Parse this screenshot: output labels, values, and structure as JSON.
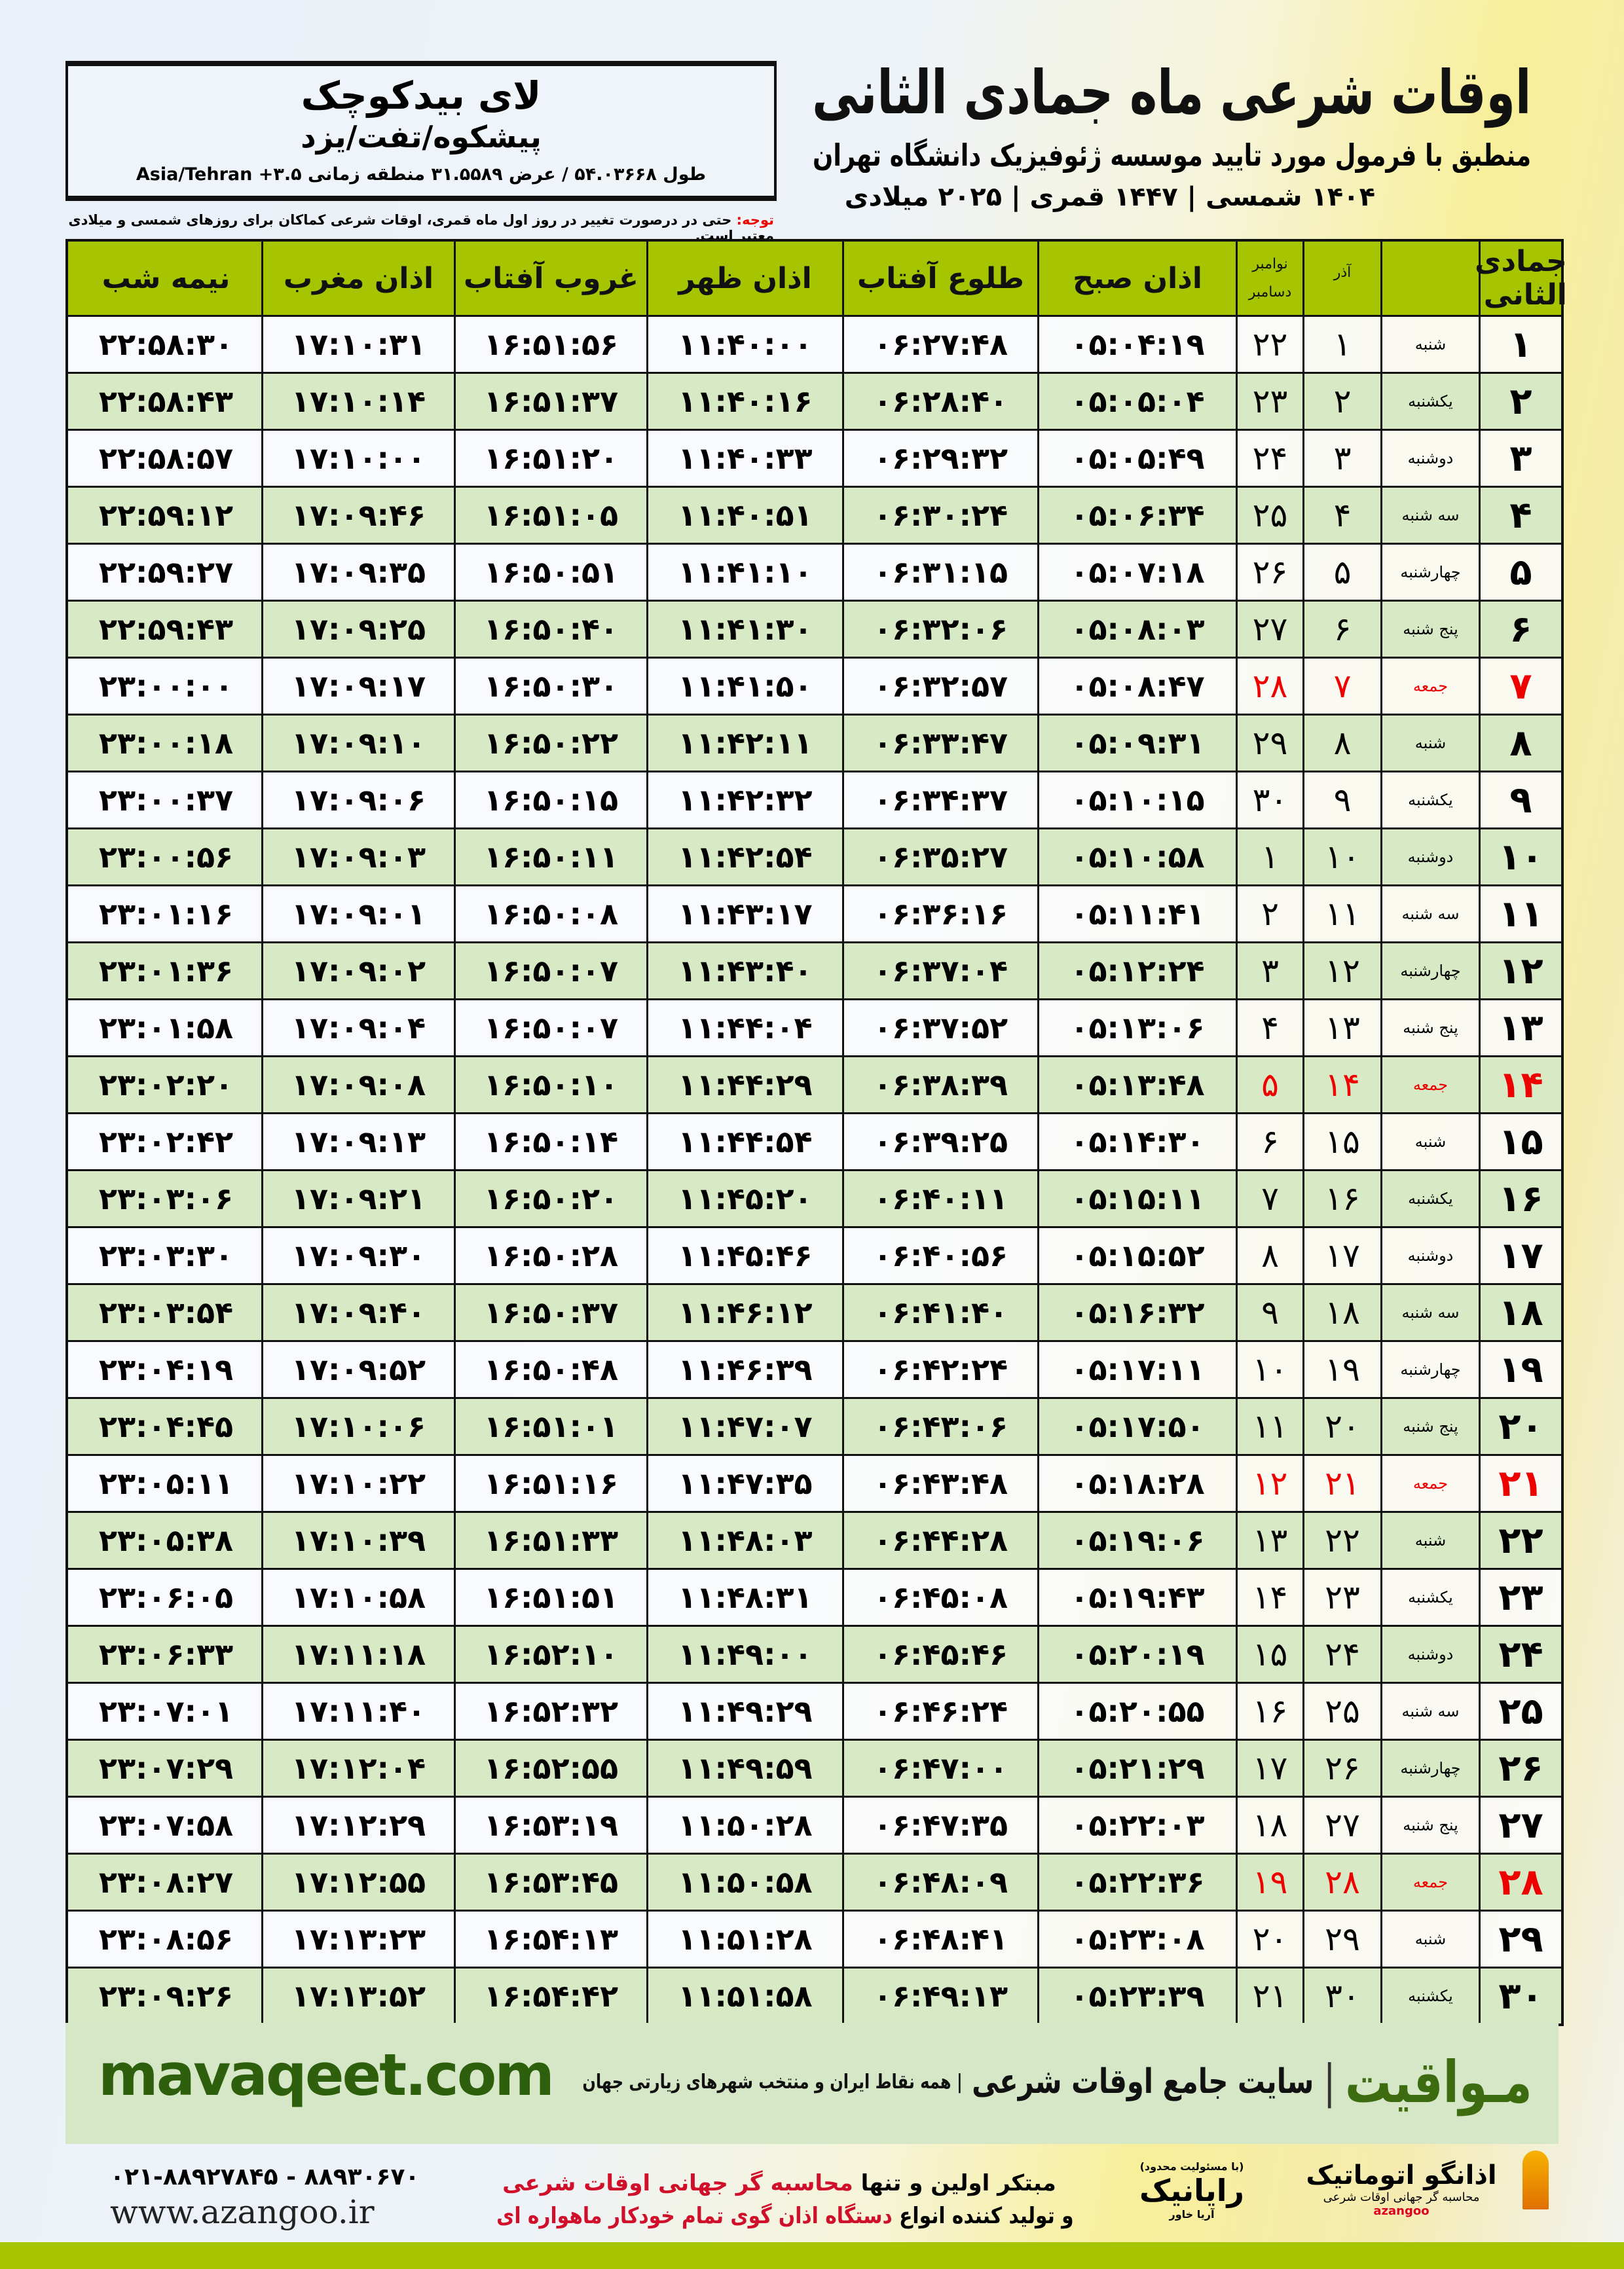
{
  "header": {
    "title": "اوقات شرعی ماه جمادی الثانی",
    "subtitle": "منطبق با فرمول مورد تایید موسسه ژئوفیزیک دانشگاه تهران",
    "dates": "۱۴۰۴ شمسی | ۱۴۴۷ قمری | ۲۰۲۵ میلادی",
    "note_label": "توجه:",
    "note": " حتی در درصورت تغییر در روز اول ماه قمری، اوقات شرعی کماکان برای روزهای شمسی و میلادی معتبر است."
  },
  "location": {
    "city": "لای بیدکوچک",
    "region": "پیشکوه/تفت/یزد",
    "coords": "طول ۵۴.۰۳۶۶۸ / عرض ۳۱.۵۵۸۹ منطقه زمانی ۳.۵+ Asia/Tehran"
  },
  "table": {
    "headers": {
      "month": "جمادی الثانی",
      "azar": "آذر",
      "nov": "نوامبر",
      "dec": "دسامبر",
      "sobh": "اذان صبح",
      "tolu": "طلوع آفتاب",
      "zohr": "اذان ظهر",
      "ghorub": "غروب آفتاب",
      "maghrib": "اذان مغرب",
      "nimeshab": "نیمه شب"
    },
    "holiday_color": "#e00000",
    "header_color": "#a6c400",
    "rows": [
      [
        "۱",
        "شنبه",
        "۱",
        "۲۲",
        "۰۵:۰۴:۱۹",
        "۰۶:۲۷:۴۸",
        "۱۱:۴۰:۰۰",
        "۱۶:۵۱:۵۶",
        "۱۷:۱۰:۳۱",
        "۲۲:۵۸:۳۰",
        false
      ],
      [
        "۲",
        "یکشنبه",
        "۲",
        "۲۳",
        "۰۵:۰۵:۰۴",
        "۰۶:۲۸:۴۰",
        "۱۱:۴۰:۱۶",
        "۱۶:۵۱:۳۷",
        "۱۷:۱۰:۱۴",
        "۲۲:۵۸:۴۳",
        false
      ],
      [
        "۳",
        "دوشنبه",
        "۳",
        "۲۴",
        "۰۵:۰۵:۴۹",
        "۰۶:۲۹:۳۲",
        "۱۱:۴۰:۳۳",
        "۱۶:۵۱:۲۰",
        "۱۷:۱۰:۰۰",
        "۲۲:۵۸:۵۷",
        false
      ],
      [
        "۴",
        "سه شنبه",
        "۴",
        "۲۵",
        "۰۵:۰۶:۳۴",
        "۰۶:۳۰:۲۴",
        "۱۱:۴۰:۵۱",
        "۱۶:۵۱:۰۵",
        "۱۷:۰۹:۴۶",
        "۲۲:۵۹:۱۲",
        false
      ],
      [
        "۵",
        "چهارشنبه",
        "۵",
        "۲۶",
        "۰۵:۰۷:۱۸",
        "۰۶:۳۱:۱۵",
        "۱۱:۴۱:۱۰",
        "۱۶:۵۰:۵۱",
        "۱۷:۰۹:۳۵",
        "۲۲:۵۹:۲۷",
        false
      ],
      [
        "۶",
        "پنج شنبه",
        "۶",
        "۲۷",
        "۰۵:۰۸:۰۳",
        "۰۶:۳۲:۰۶",
        "۱۱:۴۱:۳۰",
        "۱۶:۵۰:۴۰",
        "۱۷:۰۹:۲۵",
        "۲۲:۵۹:۴۳",
        false
      ],
      [
        "۷",
        "جمعه",
        "۷",
        "۲۸",
        "۰۵:۰۸:۴۷",
        "۰۶:۳۲:۵۷",
        "۱۱:۴۱:۵۰",
        "۱۶:۵۰:۳۰",
        "۱۷:۰۹:۱۷",
        "۲۳:۰۰:۰۰",
        true
      ],
      [
        "۸",
        "شنبه",
        "۸",
        "۲۹",
        "۰۵:۰۹:۳۱",
        "۰۶:۳۳:۴۷",
        "۱۱:۴۲:۱۱",
        "۱۶:۵۰:۲۲",
        "۱۷:۰۹:۱۰",
        "۲۳:۰۰:۱۸",
        false
      ],
      [
        "۹",
        "یکشنبه",
        "۹",
        "۳۰",
        "۰۵:۱۰:۱۵",
        "۰۶:۳۴:۳۷",
        "۱۱:۴۲:۳۲",
        "۱۶:۵۰:۱۵",
        "۱۷:۰۹:۰۶",
        "۲۳:۰۰:۳۷",
        false
      ],
      [
        "۱۰",
        "دوشنبه",
        "۱۰",
        "۱",
        "۰۵:۱۰:۵۸",
        "۰۶:۳۵:۲۷",
        "۱۱:۴۲:۵۴",
        "۱۶:۵۰:۱۱",
        "۱۷:۰۹:۰۳",
        "۲۳:۰۰:۵۶",
        false
      ],
      [
        "۱۱",
        "سه شنبه",
        "۱۱",
        "۲",
        "۰۵:۱۱:۴۱",
        "۰۶:۳۶:۱۶",
        "۱۱:۴۳:۱۷",
        "۱۶:۵۰:۰۸",
        "۱۷:۰۹:۰۱",
        "۲۳:۰۱:۱۶",
        false
      ],
      [
        "۱۲",
        "چهارشنبه",
        "۱۲",
        "۳",
        "۰۵:۱۲:۲۴",
        "۰۶:۳۷:۰۴",
        "۱۱:۴۳:۴۰",
        "۱۶:۵۰:۰۷",
        "۱۷:۰۹:۰۲",
        "۲۳:۰۱:۳۶",
        false
      ],
      [
        "۱۳",
        "پنج شنبه",
        "۱۳",
        "۴",
        "۰۵:۱۳:۰۶",
        "۰۶:۳۷:۵۲",
        "۱۱:۴۴:۰۴",
        "۱۶:۵۰:۰۷",
        "۱۷:۰۹:۰۴",
        "۲۳:۰۱:۵۸",
        false
      ],
      [
        "۱۴",
        "جمعه",
        "۱۴",
        "۵",
        "۰۵:۱۳:۴۸",
        "۰۶:۳۸:۳۹",
        "۱۱:۴۴:۲۹",
        "۱۶:۵۰:۱۰",
        "۱۷:۰۹:۰۸",
        "۲۳:۰۲:۲۰",
        true
      ],
      [
        "۱۵",
        "شنبه",
        "۱۵",
        "۶",
        "۰۵:۱۴:۳۰",
        "۰۶:۳۹:۲۵",
        "۱۱:۴۴:۵۴",
        "۱۶:۵۰:۱۴",
        "۱۷:۰۹:۱۳",
        "۲۳:۰۲:۴۲",
        false
      ],
      [
        "۱۶",
        "یکشنبه",
        "۱۶",
        "۷",
        "۰۵:۱۵:۱۱",
        "۰۶:۴۰:۱۱",
        "۱۱:۴۵:۲۰",
        "۱۶:۵۰:۲۰",
        "۱۷:۰۹:۲۱",
        "۲۳:۰۳:۰۶",
        false
      ],
      [
        "۱۷",
        "دوشنبه",
        "۱۷",
        "۸",
        "۰۵:۱۵:۵۲",
        "۰۶:۴۰:۵۶",
        "۱۱:۴۵:۴۶",
        "۱۶:۵۰:۲۸",
        "۱۷:۰۹:۳۰",
        "۲۳:۰۳:۳۰",
        false
      ],
      [
        "۱۸",
        "سه شنبه",
        "۱۸",
        "۹",
        "۰۵:۱۶:۳۲",
        "۰۶:۴۱:۴۰",
        "۱۱:۴۶:۱۲",
        "۱۶:۵۰:۳۷",
        "۱۷:۰۹:۴۰",
        "۲۳:۰۳:۵۴",
        false
      ],
      [
        "۱۹",
        "چهارشنبه",
        "۱۹",
        "۱۰",
        "۰۵:۱۷:۱۱",
        "۰۶:۴۲:۲۴",
        "۱۱:۴۶:۳۹",
        "۱۶:۵۰:۴۸",
        "۱۷:۰۹:۵۲",
        "۲۳:۰۴:۱۹",
        false
      ],
      [
        "۲۰",
        "پنج شنبه",
        "۲۰",
        "۱۱",
        "۰۵:۱۷:۵۰",
        "۰۶:۴۳:۰۶",
        "۱۱:۴۷:۰۷",
        "۱۶:۵۱:۰۱",
        "۱۷:۱۰:۰۶",
        "۲۳:۰۴:۴۵",
        false
      ],
      [
        "۲۱",
        "جمعه",
        "۲۱",
        "۱۲",
        "۰۵:۱۸:۲۸",
        "۰۶:۴۳:۴۸",
        "۱۱:۴۷:۳۵",
        "۱۶:۵۱:۱۶",
        "۱۷:۱۰:۲۲",
        "۲۳:۰۵:۱۱",
        true
      ],
      [
        "۲۲",
        "شنبه",
        "۲۲",
        "۱۳",
        "۰۵:۱۹:۰۶",
        "۰۶:۴۴:۲۸",
        "۱۱:۴۸:۰۳",
        "۱۶:۵۱:۳۳",
        "۱۷:۱۰:۳۹",
        "۲۳:۰۵:۳۸",
        false
      ],
      [
        "۲۳",
        "یکشنبه",
        "۲۳",
        "۱۴",
        "۰۵:۱۹:۴۳",
        "۰۶:۴۵:۰۸",
        "۱۱:۴۸:۳۱",
        "۱۶:۵۱:۵۱",
        "۱۷:۱۰:۵۸",
        "۲۳:۰۶:۰۵",
        false
      ],
      [
        "۲۴",
        "دوشنبه",
        "۲۴",
        "۱۵",
        "۰۵:۲۰:۱۹",
        "۰۶:۴۵:۴۶",
        "۱۱:۴۹:۰۰",
        "۱۶:۵۲:۱۰",
        "۱۷:۱۱:۱۸",
        "۲۳:۰۶:۳۳",
        false
      ],
      [
        "۲۵",
        "سه شنبه",
        "۲۵",
        "۱۶",
        "۰۵:۲۰:۵۵",
        "۰۶:۴۶:۲۴",
        "۱۱:۴۹:۲۹",
        "۱۶:۵۲:۳۲",
        "۱۷:۱۱:۴۰",
        "۲۳:۰۷:۰۱",
        false
      ],
      [
        "۲۶",
        "چهارشنبه",
        "۲۶",
        "۱۷",
        "۰۵:۲۱:۲۹",
        "۰۶:۴۷:۰۰",
        "۱۱:۴۹:۵۹",
        "۱۶:۵۲:۵۵",
        "۱۷:۱۲:۰۴",
        "۲۳:۰۷:۲۹",
        false
      ],
      [
        "۲۷",
        "پنج شنبه",
        "۲۷",
        "۱۸",
        "۰۵:۲۲:۰۳",
        "۰۶:۴۷:۳۵",
        "۱۱:۵۰:۲۸",
        "۱۶:۵۳:۱۹",
        "۱۷:۱۲:۲۹",
        "۲۳:۰۷:۵۸",
        false
      ],
      [
        "۲۸",
        "جمعه",
        "۲۸",
        "۱۹",
        "۰۵:۲۲:۳۶",
        "۰۶:۴۸:۰۹",
        "۱۱:۵۰:۵۸",
        "۱۶:۵۳:۴۵",
        "۱۷:۱۲:۵۵",
        "۲۳:۰۸:۲۷",
        true
      ],
      [
        "۲۹",
        "شنبه",
        "۲۹",
        "۲۰",
        "۰۵:۲۳:۰۸",
        "۰۶:۴۸:۴۱",
        "۱۱:۵۱:۲۸",
        "۱۶:۵۴:۱۳",
        "۱۷:۱۳:۲۳",
        "۲۳:۰۸:۵۶",
        false
      ],
      [
        "۳۰",
        "یکشنبه",
        "۳۰",
        "۲۱",
        "۰۵:۲۳:۳۹",
        "۰۶:۴۹:۱۳",
        "۱۱:۵۱:۵۸",
        "۱۶:۵۴:۴۲",
        "۱۷:۱۳:۵۲",
        "۲۳:۰۹:۲۶",
        false
      ]
    ]
  },
  "footer": {
    "brand": "مـواقیت",
    "brand_sep": "|",
    "brand_tagline": "سایت جامع اوقات شرعی",
    "brand_tagline2": "| همه نقاط ایران و منتخب شهرهای زیارتی جهان",
    "site": "mavaqeet.com",
    "phone": "۰۲۱-۸۸۹۲۷۸۴۵ - ۸۸۹۳۰۶۷۰",
    "web": "www.azangoo.ir",
    "promo_1a": "مبتکر اولین و تنها ",
    "promo_1b": "محاسبه گر جهانی اوقات شرعی",
    "promo_2a": "و تولید کننده انواع ",
    "promo_2b": "دستگاه اذان گوی تمام خودکار ماهواره ای",
    "rayanik_small": "(با مسئولیت محدود)",
    "rayanik": "رایانیک",
    "rayanik_sub": "آریا خاور",
    "azangoo_name": "اذانگو اتوماتیک",
    "azangoo_sub": "محاسبه گر جهانی اوقات شرعی",
    "azangoo_en": "azangoo"
  }
}
